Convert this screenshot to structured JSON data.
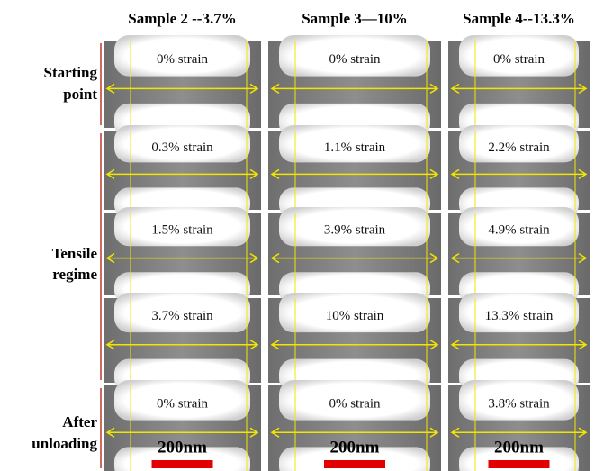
{
  "columns": [
    "Sample 2 --3.7%",
    "Sample 3—10%",
    "Sample 4--13.3%"
  ],
  "row_groups": [
    {
      "label": [
        "Starting",
        "point"
      ]
    },
    {
      "label": [
        "Tensile",
        "regime"
      ]
    },
    {
      "label": [
        "After",
        "unloading"
      ]
    }
  ],
  "rows": [
    [
      "0% strain",
      "0% strain",
      "0% strain"
    ],
    [
      "0.3% strain",
      "1.1% strain",
      "2.2% strain"
    ],
    [
      "1.5% strain",
      "3.9% strain",
      "4.9% strain"
    ],
    [
      "3.7% strain",
      "10% strain",
      "13.3% strain"
    ],
    [
      "0% strain",
      "0% strain",
      "3.8% strain"
    ]
  ],
  "scale_bars": [
    "200nm",
    "200nm",
    "200nm"
  ]
}
